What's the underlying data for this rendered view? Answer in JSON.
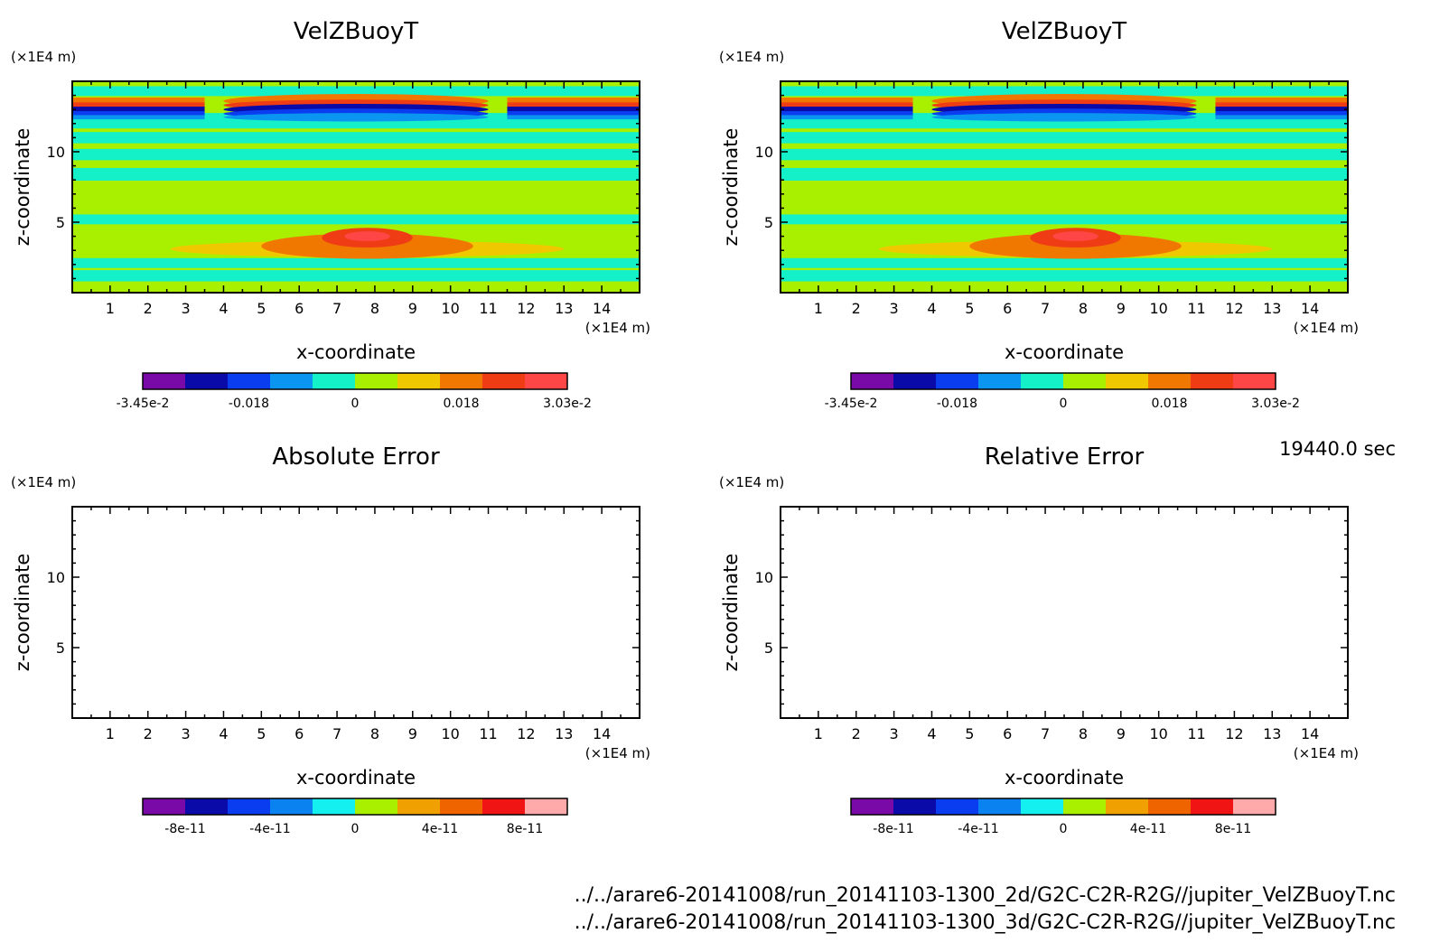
{
  "time_label": "19440.0 sec",
  "file_lines": [
    "../../arare6-20141008/run_20141103-1300_2d/G2C-C2R-R2G//jupiter_VelZBuoyT.nc",
    "../../arare6-20141008/run_20141103-1300_3d/G2C-C2R-R2G//jupiter_VelZBuoyT.nc"
  ],
  "chart_data": [
    {
      "type": "heatmap",
      "title": "VelZBuoyT",
      "xlabel": "x-coordinate",
      "ylabel": "z-coordinate",
      "x_unit": "(×1E4 m)",
      "y_unit": "(×1E4 m)",
      "xlim": [
        0,
        15
      ],
      "ylim": [
        0,
        15
      ],
      "xticks": [
        "1",
        "2",
        "3",
        "4",
        "5",
        "6",
        "7",
        "8",
        "9",
        "10",
        "11",
        "12",
        "13",
        "14"
      ],
      "yticks": [
        "5",
        "10"
      ],
      "filled": true,
      "colorbar": {
        "colors": [
          "#7a0aa8",
          "#0a0aa8",
          "#0a3cf0",
          "#0a96f0",
          "#14f0c8",
          "#a8f000",
          "#f0c800",
          "#f07800",
          "#f03c14",
          "#ff4646"
        ],
        "labels": [
          "-3.45e-2",
          "-0.018",
          "0",
          "0.018",
          "3.03e-2"
        ]
      }
    },
    {
      "type": "heatmap",
      "title": "VelZBuoyT",
      "xlabel": "x-coordinate",
      "ylabel": "z-coordinate",
      "x_unit": "(×1E4 m)",
      "y_unit": "(×1E4 m)",
      "xlim": [
        0,
        15
      ],
      "ylim": [
        0,
        15
      ],
      "xticks": [
        "1",
        "2",
        "3",
        "4",
        "5",
        "6",
        "7",
        "8",
        "9",
        "10",
        "11",
        "12",
        "13",
        "14"
      ],
      "yticks": [
        "5",
        "10"
      ],
      "filled": true,
      "colorbar": {
        "colors": [
          "#7a0aa8",
          "#0a0aa8",
          "#0a3cf0",
          "#0a96f0",
          "#14f0c8",
          "#a8f000",
          "#f0c800",
          "#f07800",
          "#f03c14",
          "#ff4646"
        ],
        "labels": [
          "-3.45e-2",
          "-0.018",
          "0",
          "0.018",
          "3.03e-2"
        ]
      }
    },
    {
      "type": "heatmap",
      "title": "Absolute Error",
      "xlabel": "x-coordinate",
      "ylabel": "z-coordinate",
      "x_unit": "(×1E4 m)",
      "y_unit": "(×1E4 m)",
      "xlim": [
        0,
        15
      ],
      "ylim": [
        0,
        15
      ],
      "xticks": [
        "1",
        "2",
        "3",
        "4",
        "5",
        "6",
        "7",
        "8",
        "9",
        "10",
        "11",
        "12",
        "13",
        "14"
      ],
      "yticks": [
        "5",
        "10"
      ],
      "filled": false,
      "colorbar": {
        "colors": [
          "#7a0aa8",
          "#0a0aa8",
          "#0a3cf0",
          "#0a82f0",
          "#14f0f0",
          "#a8f000",
          "#f0a000",
          "#f06400",
          "#f01414",
          "#ffaaaa"
        ],
        "labels": [
          "-8e-11",
          "-4e-11",
          "0",
          "4e-11",
          "8e-11"
        ]
      }
    },
    {
      "type": "heatmap",
      "title": "Relative Error",
      "xlabel": "x-coordinate",
      "ylabel": "z-coordinate",
      "x_unit": "(×1E4 m)",
      "y_unit": "(×1E4 m)",
      "xlim": [
        0,
        15
      ],
      "ylim": [
        0,
        15
      ],
      "xticks": [
        "1",
        "2",
        "3",
        "4",
        "5",
        "6",
        "7",
        "8",
        "9",
        "10",
        "11",
        "12",
        "13",
        "14"
      ],
      "yticks": [
        "5",
        "10"
      ],
      "filled": false,
      "colorbar": {
        "colors": [
          "#7a0aa8",
          "#0a0aa8",
          "#0a3cf0",
          "#0a82f0",
          "#14f0f0",
          "#a8f000",
          "#f0a000",
          "#f06400",
          "#f01414",
          "#ffaaaa"
        ],
        "labels": [
          "-8e-11",
          "-4e-11",
          "0",
          "4e-11",
          "8e-11"
        ]
      }
    }
  ]
}
